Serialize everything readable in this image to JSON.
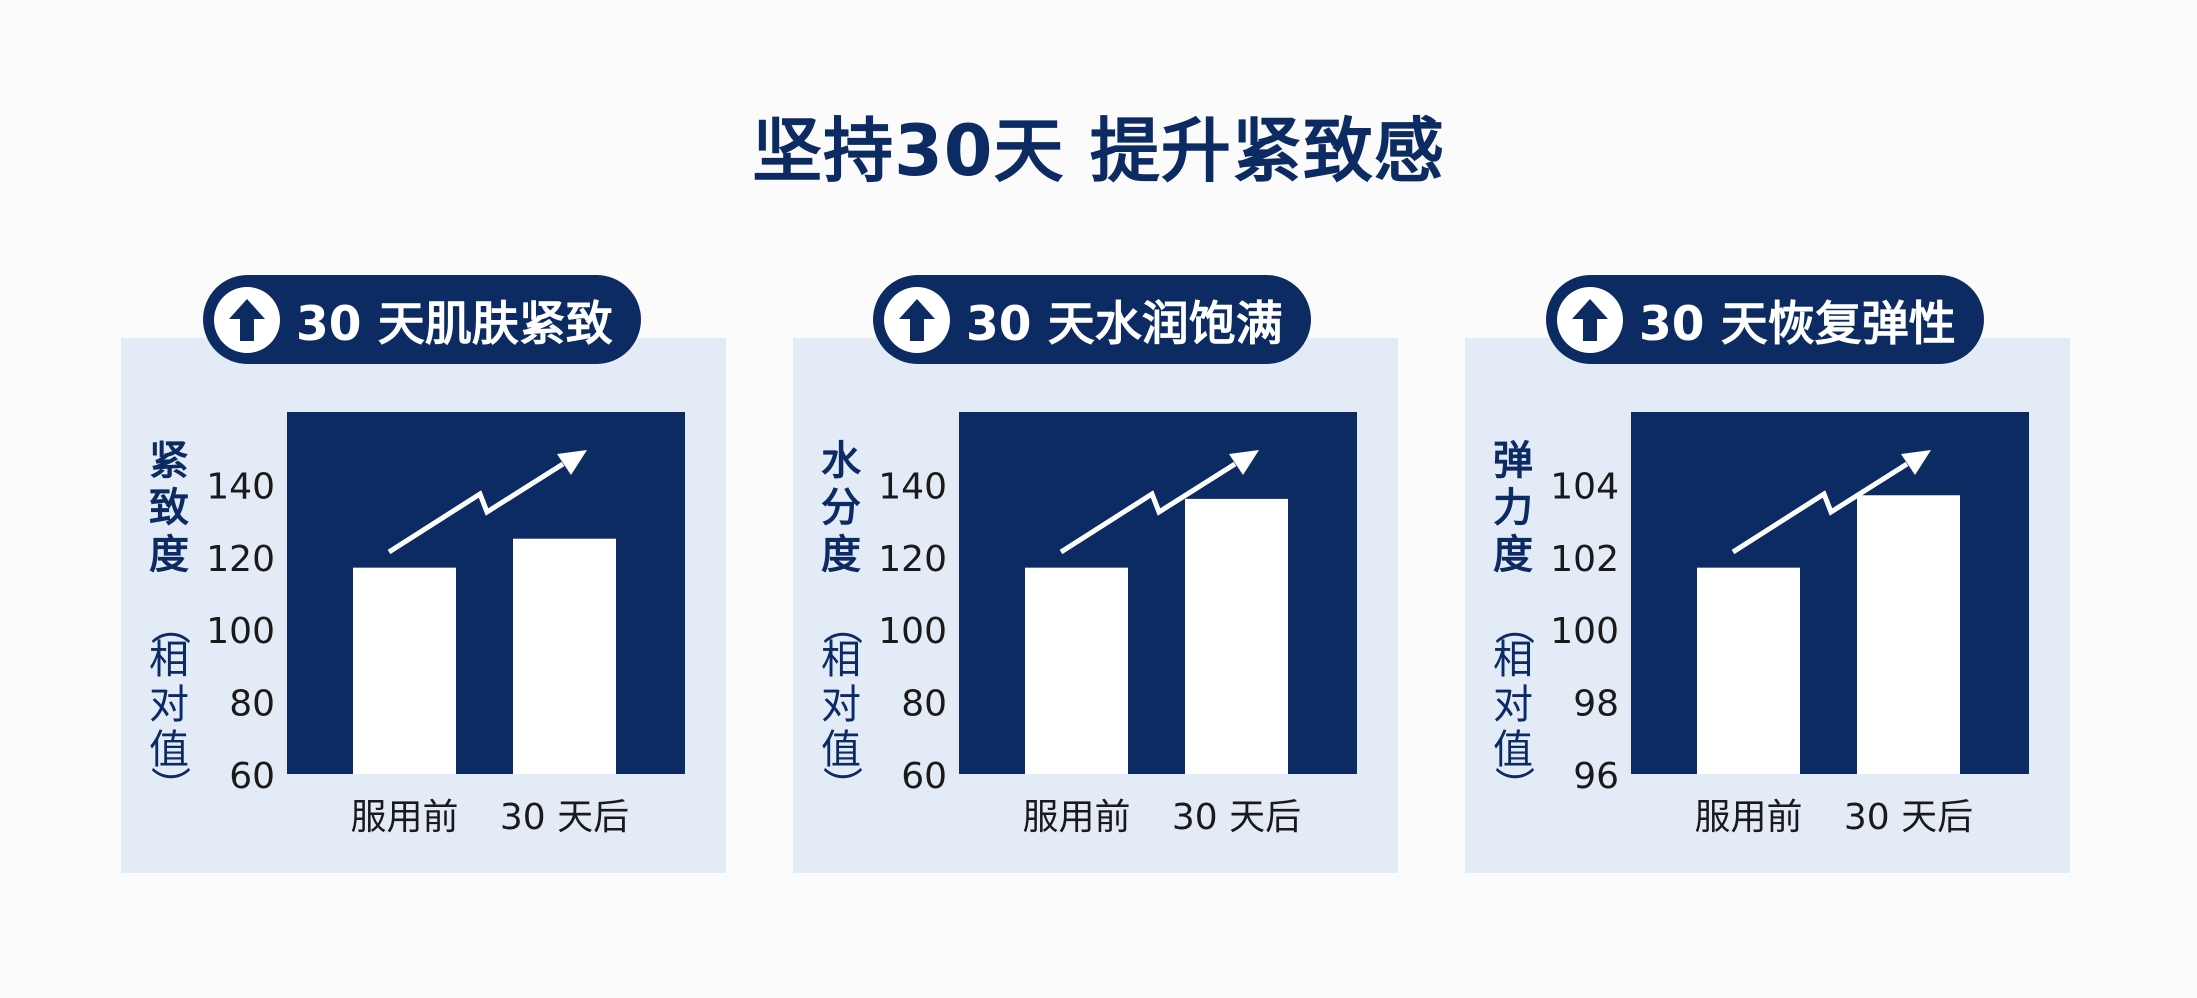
{
  "title": "坚持30天  提升紧致感",
  "colors": {
    "navy": "#0d2b63",
    "panel": "#e3ebf6",
    "bar": "#ffffff",
    "text": "#1a1a1a"
  },
  "arrow_icon": "up-arrow-icon",
  "chart_data": [
    {
      "type": "bar",
      "badge": "30 天肌肤紧致",
      "ylabel_main": "紧致度",
      "ylabel_sub": "（相对值）",
      "categories": [
        "服用前",
        "30 天后"
      ],
      "values": [
        117,
        125
      ],
      "ylim": [
        60,
        160
      ],
      "yticks": [
        60,
        80,
        100,
        120,
        140
      ]
    },
    {
      "type": "bar",
      "badge": "30 天水润饱满",
      "ylabel_main": "水分度",
      "ylabel_sub": "（相对值）",
      "categories": [
        "服用前",
        "30 天后"
      ],
      "values": [
        117,
        136
      ],
      "ylim": [
        60,
        160
      ],
      "yticks": [
        60,
        80,
        100,
        120,
        140
      ]
    },
    {
      "type": "bar",
      "badge": "30 天恢复弹性",
      "ylabel_main": "弹力度",
      "ylabel_sub": "（相对值）",
      "categories": [
        "服用前",
        "30 天后"
      ],
      "values": [
        101.7,
        103.7
      ],
      "ylim": [
        96,
        106
      ],
      "yticks": [
        96,
        98,
        100,
        102,
        104
      ]
    }
  ]
}
